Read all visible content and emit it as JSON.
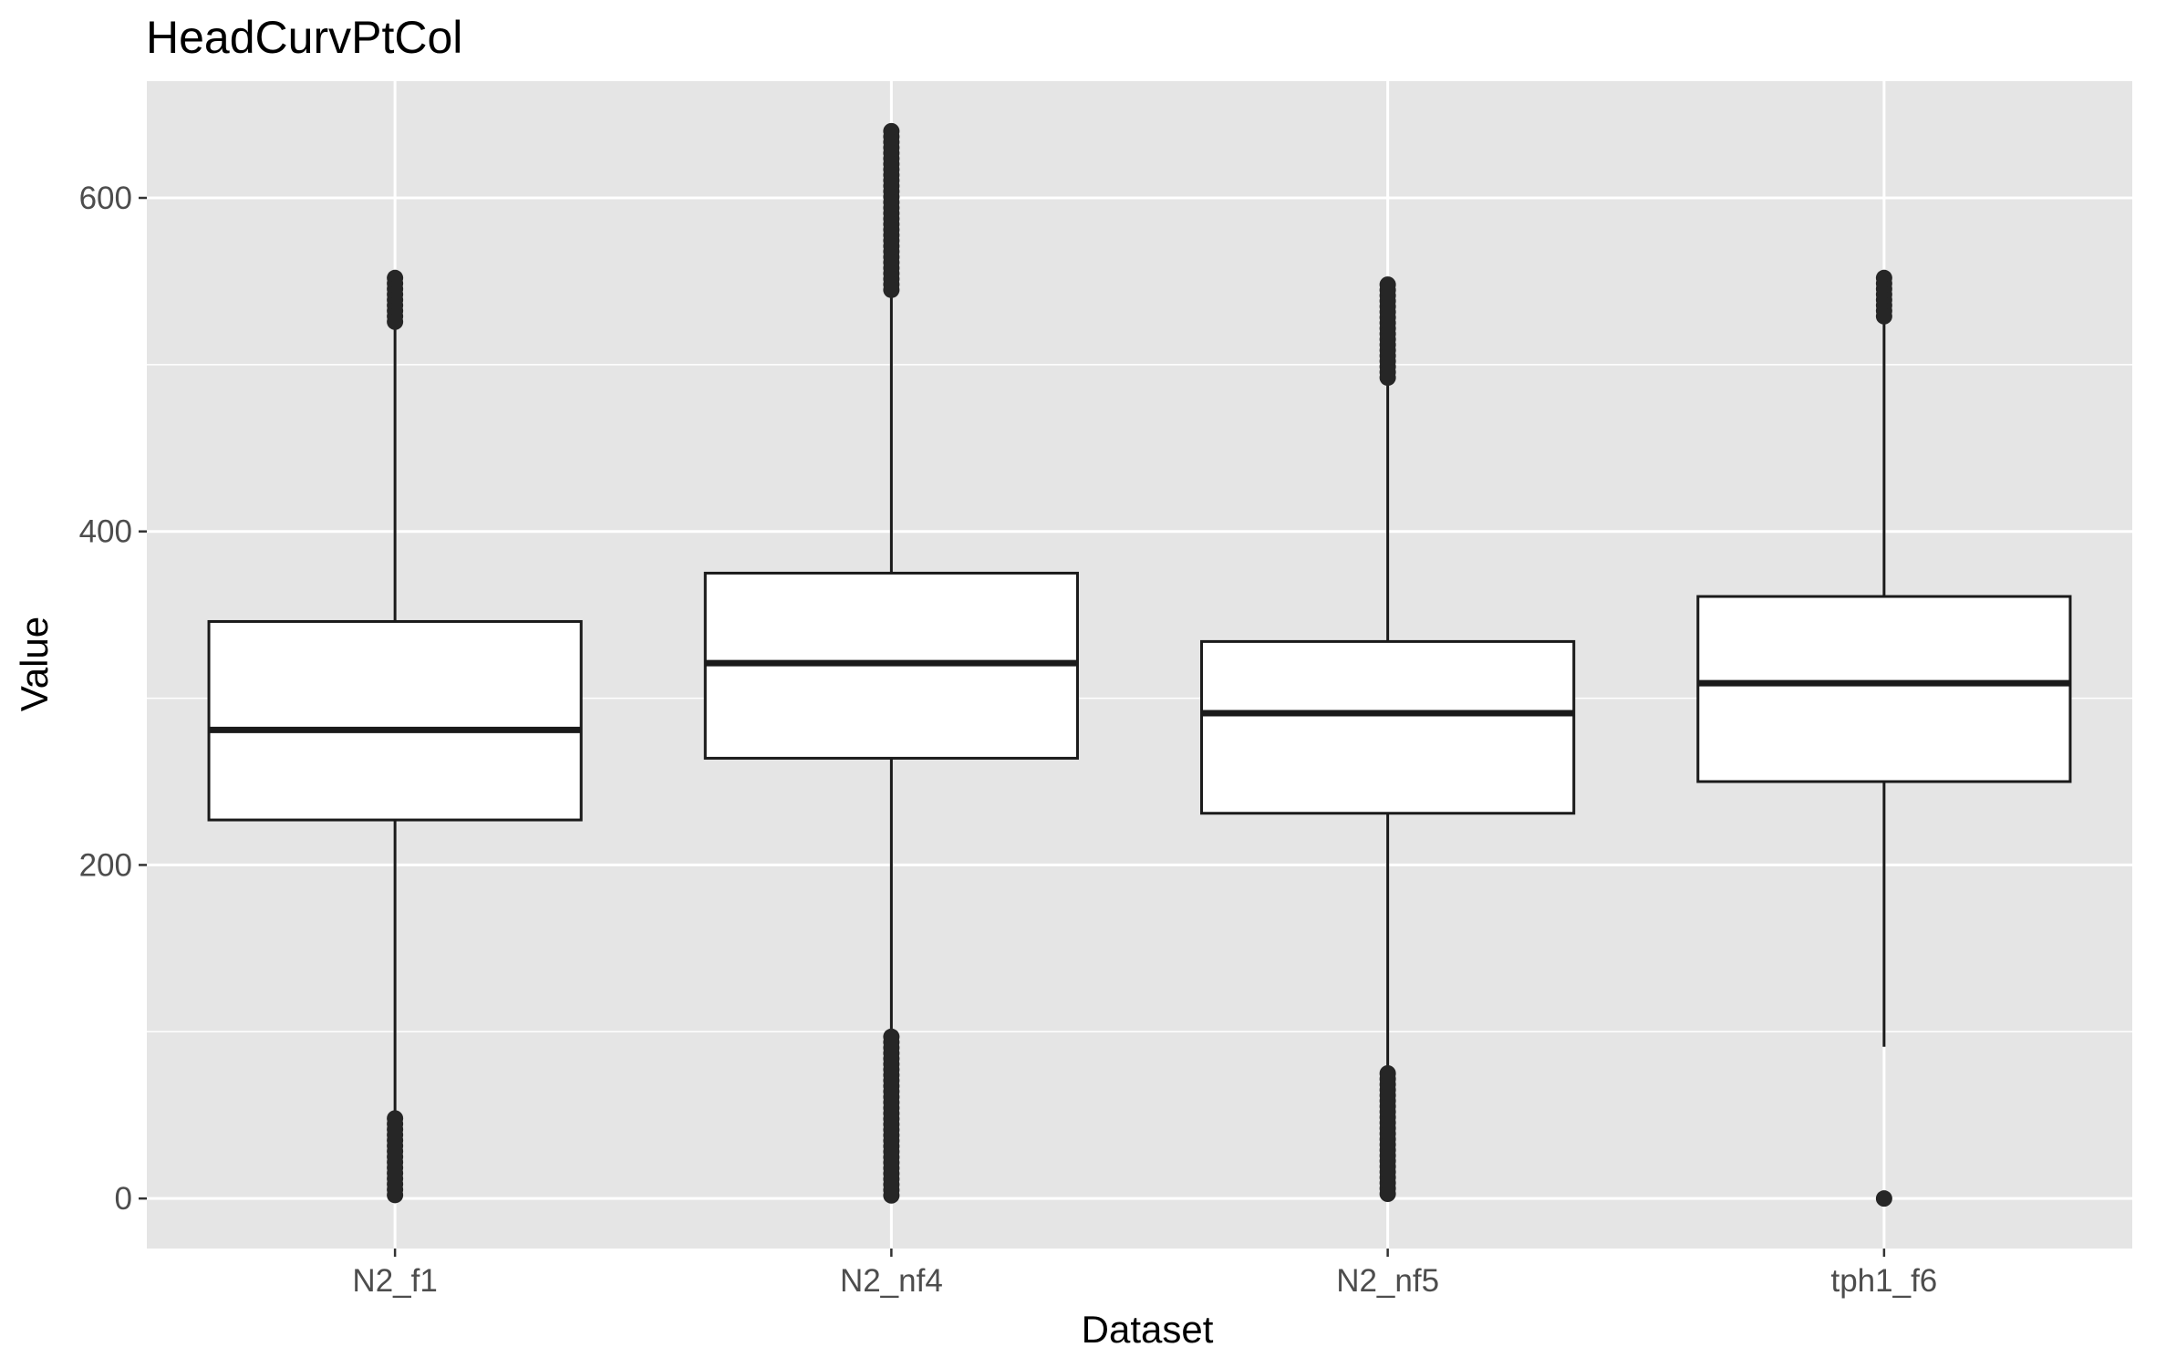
{
  "chart_data": {
    "type": "boxplot",
    "title": "HeadCurvPtCol",
    "xlabel": "Dataset",
    "ylabel": "Value",
    "ylim": [
      -30,
      670
    ],
    "yticks": [
      0,
      200,
      400,
      600
    ],
    "ytick_labels": [
      "0",
      "200",
      "400",
      "600"
    ],
    "grid": true,
    "legend": "none",
    "categories": [
      "N2_f1",
      "N2_nf4",
      "N2_nf5",
      "tph1_f6"
    ],
    "boxes": [
      {
        "name": "N2_f1",
        "whisker_low": 48,
        "q1": 227,
        "median": 281,
        "q3": 346,
        "whisker_high": 525,
        "outliers_low": [
          0,
          48
        ],
        "outliers_high": [
          525,
          552
        ]
      },
      {
        "name": "N2_nf4",
        "whisker_low": 97,
        "q1": 264,
        "median": 321,
        "q3": 375,
        "whisker_high": 543,
        "outliers_low": [
          0,
          97
        ],
        "outliers_high": [
          543,
          640
        ]
      },
      {
        "name": "N2_nf5",
        "whisker_low": 75,
        "q1": 231,
        "median": 291,
        "q3": 334,
        "whisker_high": 489,
        "outliers_low": [
          0,
          75
        ],
        "outliers_high": [
          489,
          548
        ]
      },
      {
        "name": "tph1_f6",
        "whisker_low": 91,
        "q1": 250,
        "median": 309,
        "q3": 361,
        "whisker_high": 528,
        "outliers_low": [
          0,
          0
        ],
        "outliers_high": [
          528,
          552
        ]
      }
    ],
    "colors": {
      "panel": "#e5e5e5",
      "grid": "#ffffff",
      "box_fill": "#ffffff",
      "box_stroke": "#1a1a1a",
      "outlier": "#262626"
    }
  }
}
